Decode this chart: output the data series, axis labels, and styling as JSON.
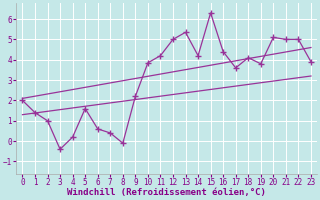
{
  "title": "",
  "xlabel": "Windchill (Refroidissement éolien,°C)",
  "ylabel": "",
  "bg_color": "#c5e8e8",
  "grid_color": "#ffffff",
  "line_color": "#993399",
  "xlim": [
    -0.5,
    23.5
  ],
  "ylim": [
    -1.6,
    6.8
  ],
  "xticks": [
    0,
    1,
    2,
    3,
    4,
    5,
    6,
    7,
    8,
    9,
    10,
    11,
    12,
    13,
    14,
    15,
    16,
    17,
    18,
    19,
    20,
    21,
    22,
    23
  ],
  "yticks": [
    -1,
    0,
    1,
    2,
    3,
    4,
    5,
    6
  ],
  "line1_x": [
    0,
    1,
    2,
    3,
    4,
    5,
    6,
    7,
    8,
    9,
    10,
    11,
    12,
    13,
    14,
    15,
    16,
    17,
    18,
    19,
    20,
    21,
    22,
    23
  ],
  "line1_y": [
    2.0,
    1.4,
    1.0,
    -0.4,
    0.2,
    1.6,
    0.6,
    0.4,
    -0.1,
    2.2,
    3.85,
    4.2,
    5.0,
    5.35,
    4.2,
    6.3,
    4.4,
    3.6,
    4.1,
    3.8,
    5.1,
    5.0,
    5.0,
    3.9
  ],
  "line2_x": [
    0,
    23
  ],
  "line2_y": [
    1.3,
    3.2
  ],
  "line3_x": [
    0,
    23
  ],
  "line3_y": [
    2.1,
    4.6
  ],
  "tick_fontsize": 5.5,
  "xlabel_fontsize": 6.5
}
